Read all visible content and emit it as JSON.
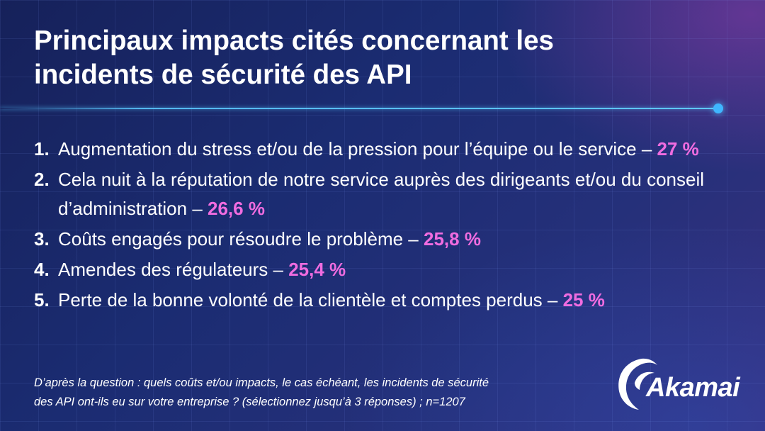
{
  "title": "Principaux impacts cités concernant les incidents de sécurité des API",
  "items": [
    {
      "num": "1.",
      "text": "Augmentation du stress et/ou de la pression pour l’équipe ou le service – ",
      "pct": "27 %"
    },
    {
      "num": "2.",
      "text": "Cela nuit à la réputation de notre service auprès des dirigeants et/ou du conseil d’administration – ",
      "pct": "26,6 %"
    },
    {
      "num": "3.",
      "text": "Coûts engagés pour résoudre le problème – ",
      "pct": "25,8 %"
    },
    {
      "num": "4.",
      "text": "Amendes des régulateurs – ",
      "pct": "25,4 %"
    },
    {
      "num": "5.",
      "text": "Perte de la bonne volonté de la clientèle et comptes perdus – ",
      "pct": "25 %"
    }
  ],
  "footnote": {
    "line1": "D’après la question : quels coûts et/ou impacts, le cas échéant, les incidents de sécurité",
    "line2": "des API ont-ils eu sur votre entreprise ? (sélectionnez jusqu’à 3 réponses) ; n=1207"
  },
  "logo": {
    "text": "Akamai",
    "icon": "akamai-wave-icon"
  },
  "colors": {
    "background": "#1b2c72",
    "accent_pink": "#f06ce0",
    "divider_blue": "#3fb6ff",
    "text": "#ffffff"
  }
}
